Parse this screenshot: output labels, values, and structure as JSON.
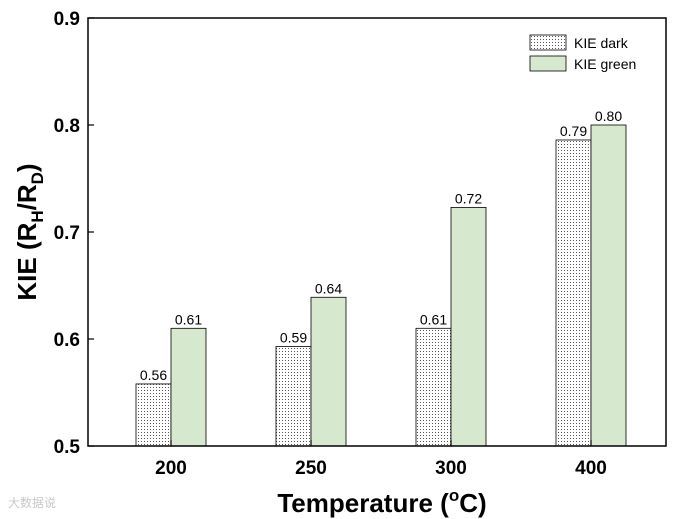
{
  "chart_data": {
    "type": "bar",
    "categories": [
      "200",
      "250",
      "300",
      "400"
    ],
    "series": [
      {
        "name": "KIE dark",
        "values": [
          0.558,
          0.593,
          0.61,
          0.786
        ],
        "labels": [
          "0.56",
          "0.59",
          "0.61",
          "0.79"
        ],
        "pattern": "dotted",
        "color": "#ffffff"
      },
      {
        "name": "KIE green",
        "values": [
          0.61,
          0.639,
          0.723,
          0.8
        ],
        "labels": [
          "0.61",
          "0.64",
          "0.72",
          "0.80"
        ],
        "pattern": "solid",
        "color": "#d6e9cf"
      }
    ],
    "xlabel_main": "Temperature (",
    "xlabel_sup": "o",
    "xlabel_end": "C)",
    "ylabel_main": "KIE (R",
    "ylabel_sub1": "H",
    "ylabel_mid": "/R",
    "ylabel_sub2": "D",
    "ylabel_end": ")",
    "ylim": [
      0.5,
      0.9
    ],
    "yticks": [
      "0.5",
      "0.6",
      "0.7",
      "0.8",
      "0.9"
    ],
    "legend_position": "top-right",
    "grid": false
  },
  "watermark": "大数据说"
}
